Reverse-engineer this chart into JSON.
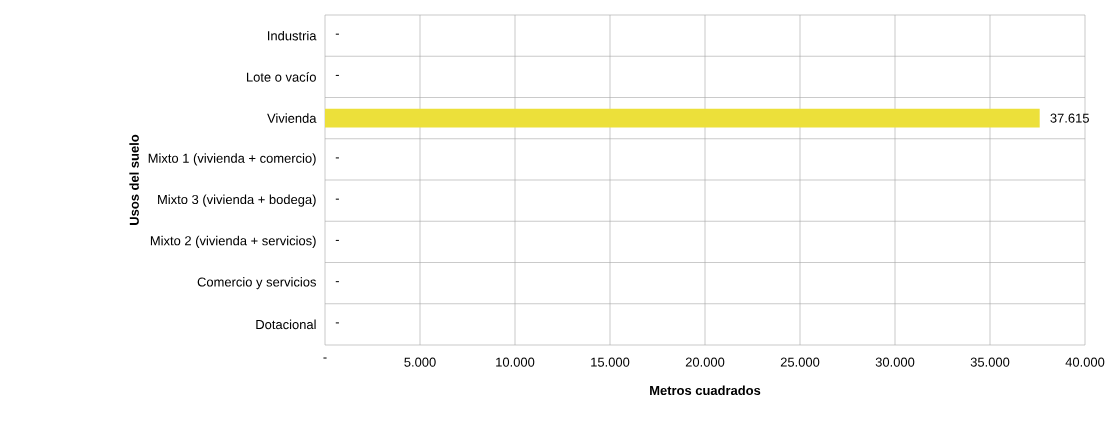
{
  "chart_data": {
    "type": "bar",
    "orientation": "horizontal",
    "xlabel": "Metros cuadrados",
    "ylabel": "Usos del suelo",
    "categories": [
      "Industria",
      "Lote o vacío",
      "Vivienda",
      "Mixto 1 (vivienda + comercio)",
      "Mixto 3 (vivienda + bodega)",
      "Mixto 2 (vivienda + servicios)",
      "Comercio y servicios",
      "Dotacional"
    ],
    "values": [
      0,
      0,
      37615,
      0,
      0,
      0,
      0,
      0
    ],
    "value_labels": [
      "-",
      "-",
      "37.615",
      "-",
      "-",
      "-",
      "-",
      "-"
    ],
    "color": "#ece03a",
    "xlim": [
      0,
      40000
    ],
    "xticks": [
      {
        "value": 0,
        "label": "-"
      },
      {
        "value": 5000,
        "label": "5.000"
      },
      {
        "value": 10000,
        "label": "10.000"
      },
      {
        "value": 15000,
        "label": "15.000"
      },
      {
        "value": 20000,
        "label": "20.000"
      },
      {
        "value": 25000,
        "label": "25.000"
      },
      {
        "value": 30000,
        "label": "30.000"
      },
      {
        "value": 35000,
        "label": "35.000"
      },
      {
        "value": 40000,
        "label": "40.000"
      }
    ],
    "grid": true
  }
}
